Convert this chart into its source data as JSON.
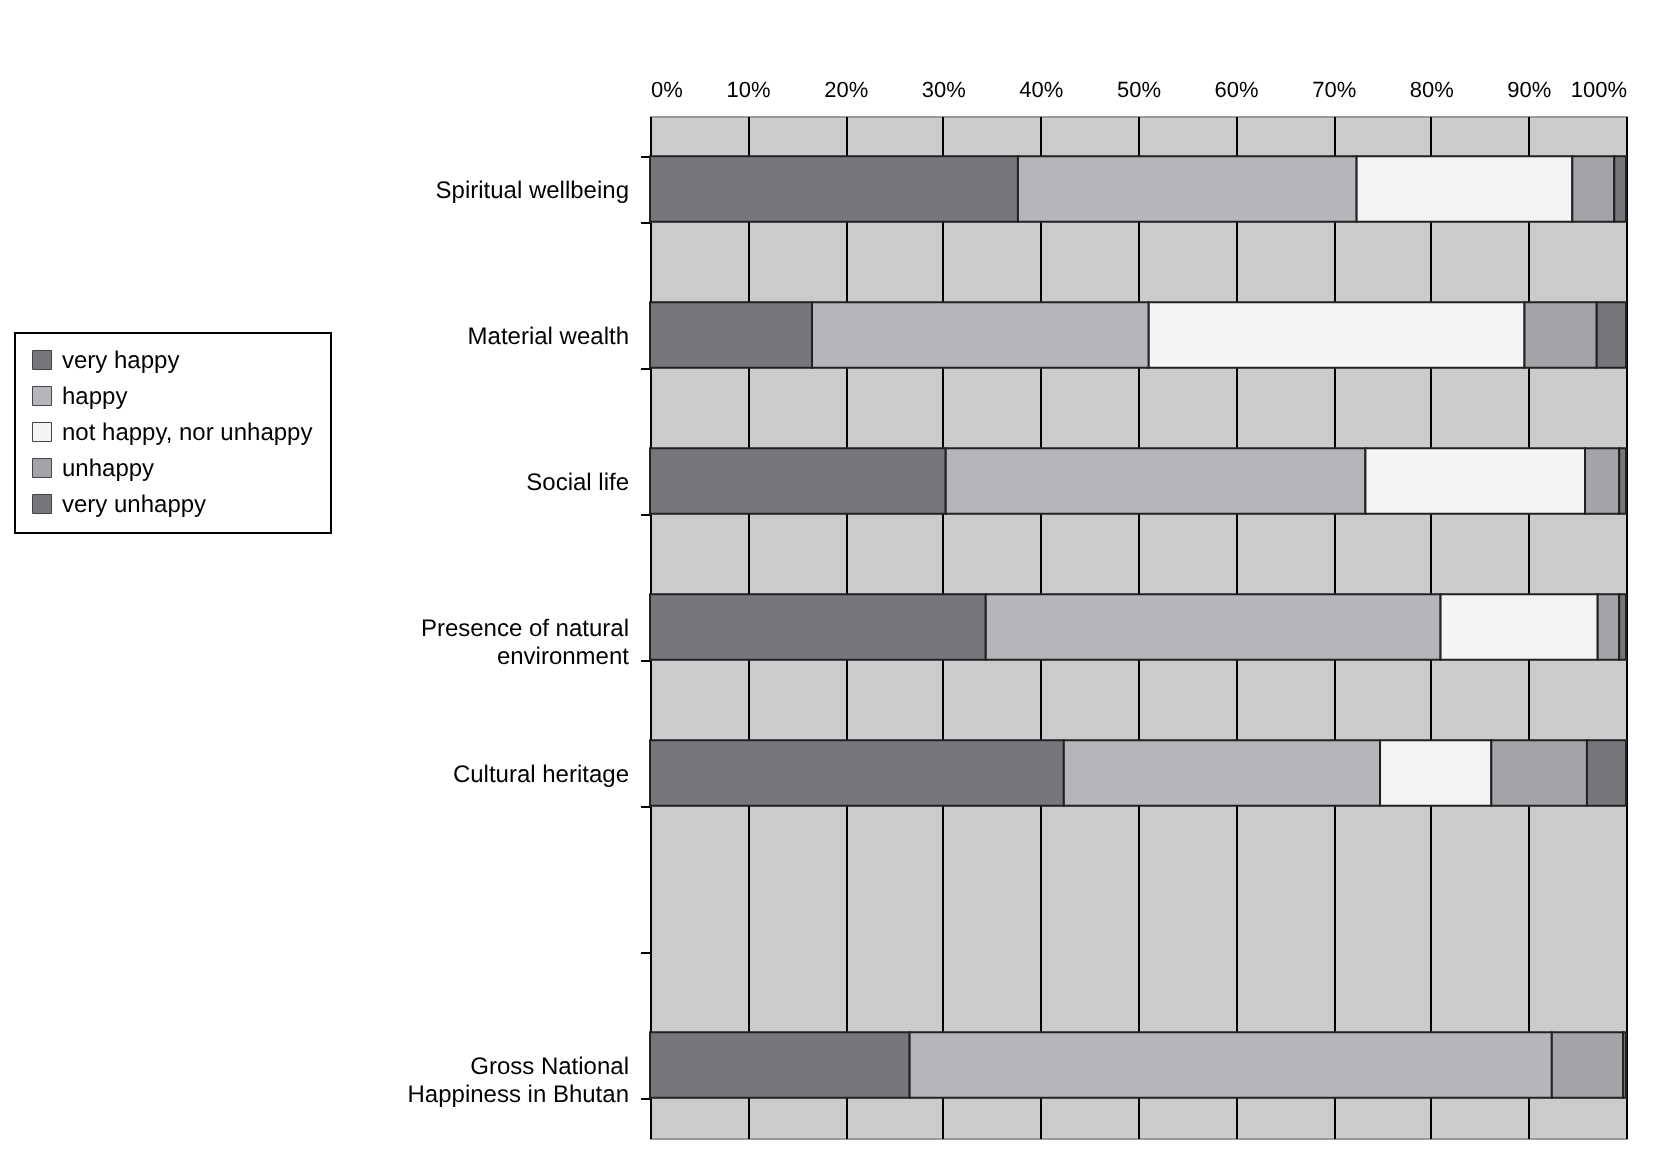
{
  "chart_data": {
    "type": "bar",
    "orientation": "horizontal",
    "stacked": true,
    "categories": [
      "Spiritual wellbeing",
      "Material wealth",
      "Social life",
      "Presence of natural environment",
      "Cultural heritage",
      null,
      "Gross National Happiness in Bhutan"
    ],
    "series": [
      {
        "name": "very happy",
        "color": "#76777b",
        "values": [
          37.7,
          16.6,
          30.3,
          34.4,
          42.4,
          null,
          26.6
        ]
      },
      {
        "name": "happy",
        "color": "#b5b6b9",
        "values": [
          34.7,
          34.5,
          43.0,
          46.6,
          32.4,
          null,
          65.8
        ]
      },
      {
        "name": "not happy, nor unhappy",
        "color": "#f4f4f4",
        "values": [
          22.1,
          38.5,
          22.5,
          16.1,
          11.4,
          null,
          null
        ]
      },
      {
        "name": "unhappy",
        "color": "#a3a4a7",
        "values": [
          4.3,
          7.4,
          3.5,
          2.2,
          9.8,
          null,
          7.3
        ]
      },
      {
        "name": "very unhappy",
        "color": "#76777b",
        "values": [
          1.2,
          3.0,
          0.7,
          0.7,
          4.0,
          null,
          0.3
        ]
      }
    ],
    "xlim": [
      0,
      100
    ],
    "xticks": [
      {
        "value": 0,
        "label": "0%"
      },
      {
        "value": 10,
        "label": "10%"
      },
      {
        "value": 20,
        "label": "20%"
      },
      {
        "value": 30,
        "label": "30%"
      },
      {
        "value": 40,
        "label": "40%"
      },
      {
        "value": 50,
        "label": "50%"
      },
      {
        "value": 60,
        "label": "60%"
      },
      {
        "value": 70,
        "label": "70%"
      },
      {
        "value": 80,
        "label": "80%"
      },
      {
        "value": 90,
        "label": "90%"
      },
      {
        "value": 100,
        "label": "100%"
      }
    ],
    "grid": "x",
    "legend": "left"
  }
}
